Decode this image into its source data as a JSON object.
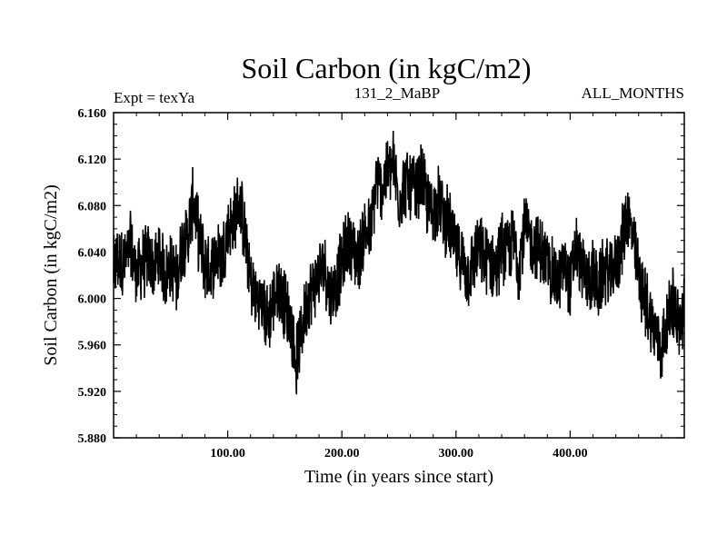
{
  "chart_data": {
    "type": "line",
    "title": "Soil Carbon (in kgC/m2)",
    "subtitle_left": "Expt = texYa",
    "subtitle_center": "131_2_MaBP",
    "subtitle_right": "ALL_MONTHS",
    "xlabel": "Time (in years since start)",
    "ylabel": "Soil Carbon (in kgC/m2)",
    "xlim": [
      0,
      500
    ],
    "ylim": [
      5.88,
      6.16
    ],
    "x_ticks": [
      100,
      200,
      300,
      400
    ],
    "x_tick_labels": [
      "100.00",
      "200.00",
      "300.00",
      "400.00"
    ],
    "y_ticks": [
      5.88,
      5.92,
      5.96,
      6.0,
      6.04,
      6.08,
      6.12,
      6.16
    ],
    "y_tick_labels": [
      "5.880",
      "5.920",
      "5.960",
      "6.000",
      "6.040",
      "6.080",
      "6.120",
      "6.160"
    ],
    "grid": false,
    "line_color": "#000000",
    "series": [
      {
        "x": [
          0,
          5,
          10,
          15,
          20,
          25,
          30,
          35,
          40,
          45,
          50,
          55,
          60,
          65,
          70,
          75,
          80,
          85,
          90,
          95,
          100,
          105,
          110,
          115,
          120,
          125,
          130,
          135,
          140,
          145,
          150,
          155,
          160,
          165,
          170,
          175,
          180,
          185,
          190,
          195,
          200,
          205,
          210,
          215,
          220,
          225,
          230,
          235,
          240,
          245,
          250,
          255,
          260,
          265,
          270,
          275,
          280,
          285,
          290,
          295,
          300,
          305,
          310,
          315,
          320,
          325,
          330,
          335,
          340,
          345,
          350,
          355,
          360,
          365,
          370,
          375,
          380,
          385,
          390,
          395,
          400,
          405,
          410,
          415,
          420,
          425,
          430,
          435,
          440,
          445,
          450,
          455,
          460,
          465,
          470,
          475,
          480,
          485,
          490,
          495,
          500
        ],
        "y": [
          6.025,
          6.035,
          6.03,
          6.045,
          6.02,
          6.03,
          6.035,
          6.025,
          6.04,
          6.02,
          6.03,
          6.015,
          6.045,
          6.055,
          6.085,
          6.05,
          6.03,
          6.025,
          6.04,
          6.035,
          6.06,
          6.065,
          6.085,
          6.055,
          6.015,
          6.0,
          5.995,
          5.98,
          6.0,
          6.01,
          5.995,
          5.98,
          5.945,
          5.975,
          6.0,
          6.01,
          6.02,
          6.03,
          6.0,
          6.015,
          6.03,
          6.05,
          6.04,
          6.035,
          6.06,
          6.055,
          6.1,
          6.095,
          6.11,
          6.115,
          6.085,
          6.1,
          6.095,
          6.09,
          6.105,
          6.08,
          6.075,
          6.085,
          6.07,
          6.06,
          6.04,
          6.035,
          6.02,
          6.03,
          6.045,
          6.03,
          6.035,
          6.025,
          6.045,
          6.04,
          6.05,
          6.03,
          6.06,
          6.05,
          6.045,
          6.04,
          6.03,
          6.02,
          6.015,
          6.03,
          6.01,
          6.045,
          6.025,
          6.015,
          6.02,
          6.01,
          6.025,
          6.02,
          6.03,
          6.045,
          6.075,
          6.05,
          6.02,
          6.0,
          5.985,
          5.97,
          5.955,
          5.98,
          6.0,
          5.975,
          5.99
        ]
      }
    ]
  }
}
